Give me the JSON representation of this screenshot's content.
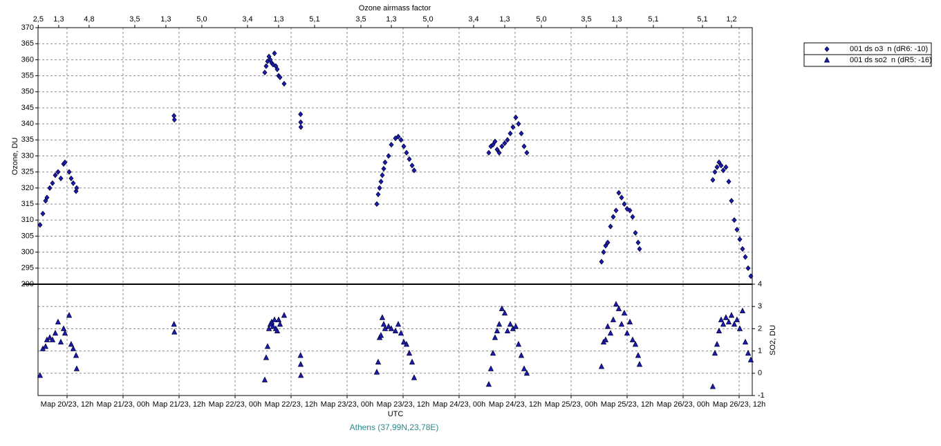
{
  "chart_data": {
    "type": "scatter",
    "top_axis_label": "Ozone airmass factor",
    "ylabel": "Ozone, DU",
    "y2label": "SO2, DU",
    "xlabel": "UTC",
    "caption": "Athens (37,99N,23,78E)",
    "xlim": [
      "2023-03-20T05:47",
      "2023-03-26T14:49"
    ],
    "xticks": [
      {
        "value": "2023-03-20T12:00",
        "label": "Мар 20/23, 12h"
      },
      {
        "value": "2023-03-21T00:00",
        "label": "Мар 21/23, 00h"
      },
      {
        "value": "2023-03-21T12:00",
        "label": "Мар 21/23, 12h"
      },
      {
        "value": "2023-03-22T00:00",
        "label": "Мар 22/23, 00h"
      },
      {
        "value": "2023-03-22T12:00",
        "label": "Мар 22/23, 12h"
      },
      {
        "value": "2023-03-23T00:00",
        "label": "Мар 23/23, 00h"
      },
      {
        "value": "2023-03-23T12:00",
        "label": "Мар 23/23, 12h"
      },
      {
        "value": "2023-03-24T00:00",
        "label": "Мар 24/23, 00h"
      },
      {
        "value": "2023-03-24T12:00",
        "label": "Мар 24/23, 12h"
      },
      {
        "value": "2023-03-25T00:00",
        "label": "Мар 25/23, 00h"
      },
      {
        "value": "2023-03-25T12:00",
        "label": "Мар 25/23, 12h"
      },
      {
        "value": "2023-03-26T00:00",
        "label": "Мар 26/23, 00h"
      },
      {
        "value": "2023-03-26T12:00",
        "label": "Мар 26/23, 12h"
      }
    ],
    "top_ticks": [
      {
        "value": "2023-03-20T05:50",
        "label": "2,5"
      },
      {
        "value": "2023-03-20T10:13",
        "label": "1,3"
      },
      {
        "value": "2023-03-20T16:44",
        "label": "4,8"
      },
      {
        "value": "2023-03-21T02:31",
        "label": "3,5"
      },
      {
        "value": "2023-03-21T09:11",
        "label": "1,3"
      },
      {
        "value": "2023-03-21T16:53",
        "label": "5,0"
      },
      {
        "value": "2023-03-22T02:40",
        "label": "3,4"
      },
      {
        "value": "2023-03-22T09:20",
        "label": "1,3"
      },
      {
        "value": "2023-03-22T17:02",
        "label": "5,1"
      },
      {
        "value": "2023-03-23T02:58",
        "label": "3,5"
      },
      {
        "value": "2023-03-23T09:29",
        "label": "1,3"
      },
      {
        "value": "2023-03-23T17:20",
        "label": "5,0"
      },
      {
        "value": "2023-03-24T03:07",
        "label": "3,4"
      },
      {
        "value": "2023-03-24T09:47",
        "label": "1,3"
      },
      {
        "value": "2023-03-24T17:38",
        "label": "5,0"
      },
      {
        "value": "2023-03-25T03:16",
        "label": "3,5"
      },
      {
        "value": "2023-03-25T09:47",
        "label": "1,3"
      },
      {
        "value": "2023-03-25T17:38",
        "label": "5,1"
      },
      {
        "value": "2023-03-26T04:09",
        "label": "5,1"
      },
      {
        "value": "2023-03-26T10:22",
        "label": "1,2"
      }
    ],
    "ylim": [
      290,
      370
    ],
    "yticks": [
      290,
      295,
      300,
      305,
      310,
      315,
      320,
      325,
      330,
      335,
      340,
      345,
      350,
      355,
      360,
      365,
      370
    ],
    "y2lim": [
      -1,
      4
    ],
    "y2ticks": [
      -1,
      0,
      1,
      2,
      3,
      4
    ],
    "grid": true,
    "legend": "top-right",
    "series": [
      {
        "name": "001 ds o3  n (dR6: -10)",
        "color": "#1c1cb4",
        "marker": "diamond",
        "x": [
          "2023-03-20T06:13",
          "2023-03-20T06:49",
          "2023-03-20T07:24",
          "2023-03-20T07:42",
          "2023-03-20T08:18",
          "2023-03-20T08:53",
          "2023-03-20T09:29",
          "2023-03-20T10:04",
          "2023-03-20T10:40",
          "2023-03-20T11:16",
          "2023-03-20T11:33",
          "2023-03-20T12:27",
          "2023-03-20T12:53",
          "2023-03-20T13:20",
          "2023-03-20T13:56",
          "2023-03-20T14:04",
          "2023-03-21T10:55",
          "2023-03-21T11:00",
          "2023-03-22T06:22",
          "2023-03-22T06:40",
          "2023-03-22T06:58",
          "2023-03-22T07:16",
          "2023-03-22T07:33",
          "2023-03-22T07:51",
          "2023-03-22T08:09",
          "2023-03-22T08:27",
          "2023-03-22T08:44",
          "2023-03-22T09:02",
          "2023-03-22T09:20",
          "2023-03-22T09:38",
          "2023-03-22T10:31",
          "2023-03-22T14:02",
          "2023-03-22T14:04",
          "2023-03-22T14:06",
          "2023-03-23T06:22",
          "2023-03-23T06:40",
          "2023-03-23T06:58",
          "2023-03-23T07:16",
          "2023-03-23T07:33",
          "2023-03-23T07:51",
          "2023-03-23T08:09",
          "2023-03-23T08:53",
          "2023-03-23T09:29",
          "2023-03-23T10:22",
          "2023-03-23T10:58",
          "2023-03-23T11:33",
          "2023-03-23T12:09",
          "2023-03-23T12:44",
          "2023-03-23T13:20",
          "2023-03-23T13:56",
          "2023-03-23T14:22",
          "2023-03-24T06:22",
          "2023-03-24T06:49",
          "2023-03-24T07:16",
          "2023-03-24T07:42",
          "2023-03-24T08:09",
          "2023-03-24T08:36",
          "2023-03-24T09:11",
          "2023-03-24T09:47",
          "2023-03-24T10:22",
          "2023-03-24T10:58",
          "2023-03-24T11:33",
          "2023-03-24T12:09",
          "2023-03-24T12:44",
          "2023-03-24T13:20",
          "2023-03-24T13:56",
          "2023-03-24T14:31",
          "2023-03-25T06:31",
          "2023-03-25T06:58",
          "2023-03-25T07:24",
          "2023-03-25T07:51",
          "2023-03-25T08:27",
          "2023-03-25T09:02",
          "2023-03-25T09:38",
          "2023-03-25T10:13",
          "2023-03-25T10:49",
          "2023-03-25T11:24",
          "2023-03-25T12:00",
          "2023-03-25T12:36",
          "2023-03-25T13:11",
          "2023-03-25T13:47",
          "2023-03-25T14:22",
          "2023-03-25T14:40",
          "2023-03-26T06:22",
          "2023-03-26T06:49",
          "2023-03-26T07:16",
          "2023-03-26T07:42",
          "2023-03-26T08:09",
          "2023-03-26T08:36",
          "2023-03-26T09:11",
          "2023-03-26T09:47",
          "2023-03-26T10:22",
          "2023-03-26T10:58",
          "2023-03-26T11:33",
          "2023-03-26T12:09",
          "2023-03-26T12:44",
          "2023-03-26T13:20",
          "2023-03-26T13:56",
          "2023-03-26T14:31"
        ],
        "values": [
          308.5,
          312,
          316,
          317,
          320,
          321.5,
          324,
          325,
          323,
          327.5,
          328,
          325,
          323,
          321.5,
          319,
          320,
          342.5,
          341.3,
          356,
          358,
          359.5,
          361,
          360,
          359,
          358.5,
          362,
          358,
          357,
          355,
          354.5,
          352.5,
          343,
          340.5,
          339,
          315,
          318,
          320,
          322,
          324,
          326,
          328,
          330,
          333.5,
          335.5,
          336,
          335,
          333,
          331,
          329,
          327,
          325.5,
          331,
          333,
          333.5,
          334.5,
          332,
          331,
          333,
          334,
          335,
          337,
          339,
          342,
          340,
          337,
          333,
          331,
          297,
          300,
          302,
          303,
          308,
          311,
          313,
          318.5,
          317,
          315,
          313.5,
          313,
          311,
          306,
          303,
          301,
          322.5,
          325,
          326.5,
          328,
          327,
          325.5,
          326.5,
          322,
          316,
          310,
          307,
          304,
          301,
          298.5,
          295,
          292.5
        ]
      },
      {
        "name": "001 ds so2  n (dR5: -16)",
        "color": "#1c1cb4",
        "marker": "triangle",
        "axis": "y2",
        "x": [
          "2023-03-20T06:13",
          "2023-03-20T06:49",
          "2023-03-20T07:24",
          "2023-03-20T07:42",
          "2023-03-20T08:18",
          "2023-03-20T08:53",
          "2023-03-20T09:29",
          "2023-03-20T10:04",
          "2023-03-20T10:40",
          "2023-03-20T11:16",
          "2023-03-20T11:33",
          "2023-03-20T12:27",
          "2023-03-20T12:53",
          "2023-03-20T13:20",
          "2023-03-20T13:56",
          "2023-03-20T14:04",
          "2023-03-21T10:55",
          "2023-03-21T11:00",
          "2023-03-22T06:22",
          "2023-03-22T06:40",
          "2023-03-22T06:58",
          "2023-03-22T07:16",
          "2023-03-22T07:33",
          "2023-03-22T07:51",
          "2023-03-22T08:09",
          "2023-03-22T08:27",
          "2023-03-22T08:44",
          "2023-03-22T09:02",
          "2023-03-22T09:20",
          "2023-03-22T09:38",
          "2023-03-22T10:31",
          "2023-03-22T14:02",
          "2023-03-22T14:04",
          "2023-03-22T14:06",
          "2023-03-23T06:22",
          "2023-03-23T06:40",
          "2023-03-23T06:58",
          "2023-03-23T07:16",
          "2023-03-23T07:33",
          "2023-03-23T07:51",
          "2023-03-23T08:09",
          "2023-03-23T08:53",
          "2023-03-23T09:29",
          "2023-03-23T10:22",
          "2023-03-23T10:58",
          "2023-03-23T11:33",
          "2023-03-23T12:09",
          "2023-03-23T12:44",
          "2023-03-23T13:20",
          "2023-03-23T13:56",
          "2023-03-23T14:22",
          "2023-03-24T06:22",
          "2023-03-24T06:49",
          "2023-03-24T07:16",
          "2023-03-24T07:42",
          "2023-03-24T08:09",
          "2023-03-24T08:36",
          "2023-03-24T09:11",
          "2023-03-24T09:47",
          "2023-03-24T10:22",
          "2023-03-24T10:58",
          "2023-03-24T11:33",
          "2023-03-24T12:09",
          "2023-03-24T12:44",
          "2023-03-24T13:20",
          "2023-03-24T13:56",
          "2023-03-24T14:31",
          "2023-03-25T06:31",
          "2023-03-25T06:58",
          "2023-03-25T07:24",
          "2023-03-25T07:51",
          "2023-03-25T08:27",
          "2023-03-25T09:02",
          "2023-03-25T09:38",
          "2023-03-25T10:13",
          "2023-03-25T10:49",
          "2023-03-25T11:24",
          "2023-03-25T12:00",
          "2023-03-25T12:36",
          "2023-03-25T13:11",
          "2023-03-25T13:47",
          "2023-03-25T14:22",
          "2023-03-25T14:40",
          "2023-03-26T06:22",
          "2023-03-26T06:49",
          "2023-03-26T07:16",
          "2023-03-26T07:42",
          "2023-03-26T08:09",
          "2023-03-26T08:36",
          "2023-03-26T09:11",
          "2023-03-26T09:47",
          "2023-03-26T10:22",
          "2023-03-26T10:58",
          "2023-03-26T11:33",
          "2023-03-26T12:09",
          "2023-03-26T12:44",
          "2023-03-26T13:20",
          "2023-03-26T13:56",
          "2023-03-26T14:31"
        ],
        "values": [
          -0.1,
          1.1,
          1.2,
          1.5,
          1.6,
          1.5,
          1.8,
          2.3,
          1.4,
          2.0,
          1.8,
          2.6,
          1.3,
          1.1,
          0.8,
          0.2,
          2.2,
          1.85,
          -0.3,
          0.7,
          1.2,
          2.0,
          2.2,
          2.3,
          2.1,
          2.4,
          2.0,
          1.9,
          2.4,
          2.2,
          2.6,
          0.8,
          0.4,
          -0.1,
          0.05,
          0.5,
          1.6,
          1.7,
          2.5,
          2.2,
          2.0,
          2.1,
          2.0,
          1.9,
          2.2,
          1.8,
          1.4,
          1.3,
          0.9,
          0.5,
          -0.2,
          -0.5,
          0.2,
          0.9,
          1.6,
          1.9,
          2.2,
          2.9,
          2.7,
          1.9,
          2.2,
          2.0,
          2.1,
          1.3,
          0.8,
          0.2,
          0.0,
          0.3,
          1.4,
          1.5,
          2.1,
          1.8,
          2.4,
          3.1,
          2.9,
          2.2,
          2.7,
          1.8,
          2.3,
          1.5,
          1.3,
          0.8,
          0.4,
          -0.6,
          0.9,
          1.3,
          1.9,
          2.4,
          2.2,
          2.5,
          2.3,
          2.6,
          2.2,
          2.4,
          2.0,
          2.8,
          1.4,
          0.9,
          0.6
        ]
      }
    ]
  }
}
